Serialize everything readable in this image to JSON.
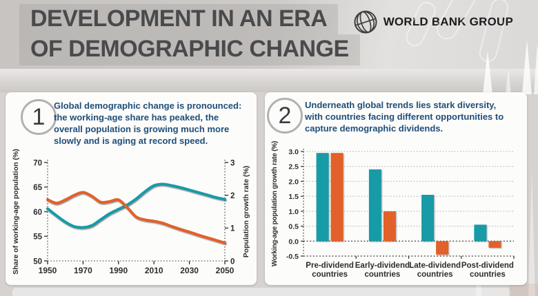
{
  "header": {
    "title_line1": "DEVELOPMENT IN AN ERA",
    "title_line2": "OF DEMOGRAPHIC CHANGE",
    "logo_text": "WORLD BANK GROUP"
  },
  "panels": [
    {
      "number": "1",
      "text": "Global demographic change is pronounced: the working-age share has peaked, the overall population is growing much more slowly and is aging at record speed."
    },
    {
      "number": "2",
      "text": "Underneath global trends lies stark diversity, with countries facing different opportunities to capture demographic dividends."
    }
  ],
  "colors": {
    "teal": "#169ba7",
    "orange": "#e2602a",
    "accent_text": "#1f4e79",
    "axis_dark": "#3a3a3a",
    "grid_light": "#b0aeac"
  },
  "chart_data": [
    {
      "type": "line",
      "x": [
        1950,
        1955,
        1960,
        1965,
        1970,
        1975,
        1980,
        1985,
        1990,
        1995,
        2000,
        2005,
        2010,
        2015,
        2020,
        2025,
        2030,
        2035,
        2040,
        2045,
        2050
      ],
      "series": [
        {
          "name": "Share of working-age population (%)",
          "axis": "left",
          "color_key": "teal",
          "values": [
            60.6,
            59.2,
            57.9,
            57.0,
            56.8,
            57.2,
            58.4,
            59.6,
            60.5,
            61.4,
            62.6,
            64.1,
            65.3,
            65.6,
            65.3,
            64.9,
            64.4,
            63.9,
            63.4,
            62.9,
            62.5
          ]
        },
        {
          "name": "Population growth rate (%)",
          "axis": "right",
          "color_key": "orange",
          "values": [
            1.87,
            1.76,
            1.86,
            2.0,
            2.09,
            1.97,
            1.79,
            1.81,
            1.86,
            1.62,
            1.34,
            1.25,
            1.21,
            1.15,
            1.05,
            0.96,
            0.88,
            0.79,
            0.71,
            0.63,
            0.55
          ]
        }
      ],
      "left_axis": {
        "label": "Share of working-age population (%)",
        "ticks": [
          50,
          55,
          60,
          65,
          70
        ],
        "range": [
          50,
          70
        ]
      },
      "right_axis": {
        "label": "Population growth rate (%)",
        "ticks": [
          0,
          1,
          2,
          3
        ],
        "range": [
          0,
          3
        ]
      },
      "x_axis": {
        "ticks": [
          1950,
          1970,
          1990,
          2010,
          2030,
          2050
        ],
        "range": [
          1950,
          2050
        ]
      },
      "grid": false,
      "legend": "none"
    },
    {
      "type": "bar",
      "categories": [
        {
          "line1": "Pre-dividend",
          "line2": "countries"
        },
        {
          "line1": "Early-dividend",
          "line2": "countries"
        },
        {
          "line1": "Late-dividend",
          "line2": "countries"
        },
        {
          "line1": "Post-dividend",
          "line2": "countries"
        }
      ],
      "series": [
        {
          "name": "teal-series",
          "color_key": "teal",
          "values": [
            2.95,
            2.4,
            1.55,
            0.55
          ]
        },
        {
          "name": "orange-series",
          "color_key": "orange",
          "values": [
            2.95,
            1.0,
            -0.45,
            -0.22
          ]
        }
      ],
      "ylabel": "Working-age population growth rate (%)",
      "yticks": [
        3.0,
        2.5,
        2.0,
        1.5,
        1.0,
        0.5,
        0.0,
        -0.5
      ],
      "ylim": [
        -0.5,
        3.0
      ],
      "grid": true,
      "legend": "none"
    }
  ]
}
